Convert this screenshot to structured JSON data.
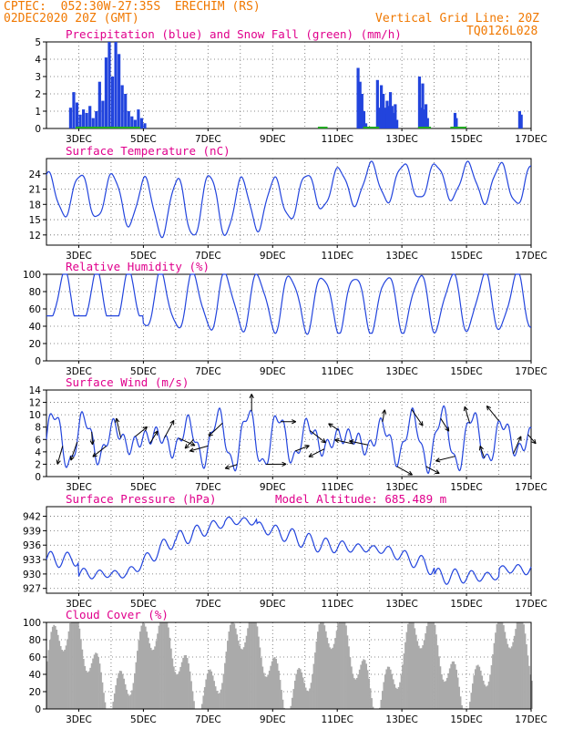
{
  "header": {
    "line1": "CPTEC:  052:30W-27:35S  ERECHIM (RS)",
    "line2": "02DEC2020 20Z (GMT)",
    "grid_note": "Vertical Grid Line: 20Z",
    "code": "TQ0126L028"
  },
  "colors": {
    "line": "#2244dd",
    "snow": "#22aa22",
    "cloud": "#aaaaaa",
    "title": "#e0008c",
    "header": "#f07800"
  },
  "chart_data": [
    {
      "type": "bar",
      "title": "Precipitation (blue) and Snow Fall (green) (mm/h)",
      "x_ticks": [
        "3DEC",
        "5DEC",
        "7DEC",
        "9DEC",
        "11DEC",
        "13DEC",
        "15DEC",
        "17DEC"
      ],
      "ylim": [
        0,
        5
      ],
      "y_ticks": [
        0,
        1,
        2,
        3,
        4,
        5
      ],
      "series": [
        {
          "name": "Precipitation",
          "points": [
            [
              0.7,
              1.2
            ],
            [
              0.8,
              2.1
            ],
            [
              0.9,
              1.5
            ],
            [
              1.0,
              0.8
            ],
            [
              1.1,
              1.1
            ],
            [
              1.2,
              0.9
            ],
            [
              1.3,
              1.3
            ],
            [
              1.4,
              0.6
            ],
            [
              1.5,
              1.0
            ],
            [
              1.6,
              2.7
            ],
            [
              1.7,
              1.6
            ],
            [
              1.8,
              4.1
            ],
            [
              1.9,
              5.0
            ],
            [
              2.0,
              3.0
            ],
            [
              2.1,
              5.0
            ],
            [
              2.2,
              4.3
            ],
            [
              2.3,
              2.5
            ],
            [
              2.4,
              2.0
            ],
            [
              2.5,
              1.0
            ],
            [
              2.6,
              0.7
            ],
            [
              2.7,
              0.5
            ],
            [
              2.8,
              1.1
            ],
            [
              2.9,
              0.6
            ],
            [
              3.0,
              0.3
            ],
            [
              10.1,
              3.5
            ],
            [
              10.2,
              2.7
            ],
            [
              10.3,
              2.0
            ],
            [
              10.4,
              1.0
            ],
            [
              10.5,
              0.3
            ],
            [
              11.0,
              2.8
            ],
            [
              11.1,
              1.2
            ],
            [
              11.2,
              2.5
            ],
            [
              11.3,
              2.0
            ],
            [
              11.4,
              1.2
            ],
            [
              11.5,
              0.8
            ],
            [
              11.6,
              1.3
            ],
            [
              11.7,
              0.6
            ],
            [
              12.6,
              1.6
            ],
            [
              12.7,
              1.1
            ],
            [
              12.8,
              2.1
            ],
            [
              12.9,
              1.3
            ],
            [
              13.0,
              0.9
            ],
            [
              13.1,
              1.4
            ],
            [
              13.2,
              0.5
            ],
            [
              14.0,
              3.0
            ],
            [
              14.1,
              1.2
            ],
            [
              14.2,
              2.6
            ],
            [
              14.3,
              1.1
            ],
            [
              14.4,
              1.4
            ],
            [
              14.5,
              0.6
            ],
            [
              16.2,
              0.9
            ],
            [
              16.3,
              0.6
            ],
            [
              19.8,
              1.0
            ],
            [
              19.9,
              0.8
            ]
          ]
        },
        {
          "name": "Snow Fall",
          "points": []
        }
      ]
    },
    {
      "type": "line",
      "title": "Surface Temperature (nC)",
      "x_ticks": [
        "3DEC",
        "5DEC",
        "7DEC",
        "9DEC",
        "11DEC",
        "13DEC",
        "15DEC",
        "17DEC"
      ],
      "ylim": [
        10,
        27
      ],
      "y_ticks": [
        12,
        15,
        18,
        21,
        24
      ]
    },
    {
      "type": "line",
      "title": "Relative Humidity (%)",
      "x_ticks": [
        "3DEC",
        "5DEC",
        "7DEC",
        "9DEC",
        "11DEC",
        "13DEC",
        "15DEC",
        "17DEC"
      ],
      "ylim": [
        0,
        100
      ],
      "y_ticks": [
        0,
        20,
        40,
        60,
        80,
        100
      ]
    },
    {
      "type": "line",
      "title": "Surface Wind (m/s)",
      "x_ticks": [
        "3DEC",
        "5DEC",
        "7DEC",
        "9DEC",
        "11DEC",
        "13DEC",
        "15DEC",
        "17DEC"
      ],
      "ylim": [
        0,
        14
      ],
      "y_ticks": [
        0,
        2,
        4,
        6,
        8,
        10,
        12,
        14
      ]
    },
    {
      "type": "line",
      "title": "Surface Pressure (hPa)",
      "annotation": "Model Altitude: 685.489 m",
      "x_ticks": [
        "3DEC",
        "5DEC",
        "7DEC",
        "9DEC",
        "11DEC",
        "13DEC",
        "15DEC",
        "17DEC"
      ],
      "ylim": [
        926,
        944
      ],
      "y_ticks": [
        927,
        930,
        933,
        936,
        939,
        942
      ]
    },
    {
      "type": "area",
      "title": "Cloud Cover (%)",
      "x_ticks": [
        "3DEC",
        "5DEC",
        "7DEC",
        "9DEC",
        "11DEC",
        "13DEC",
        "15DEC",
        "17DEC"
      ],
      "ylim": [
        0,
        100
      ],
      "y_ticks": [
        0,
        20,
        40,
        60,
        80,
        100
      ]
    }
  ]
}
